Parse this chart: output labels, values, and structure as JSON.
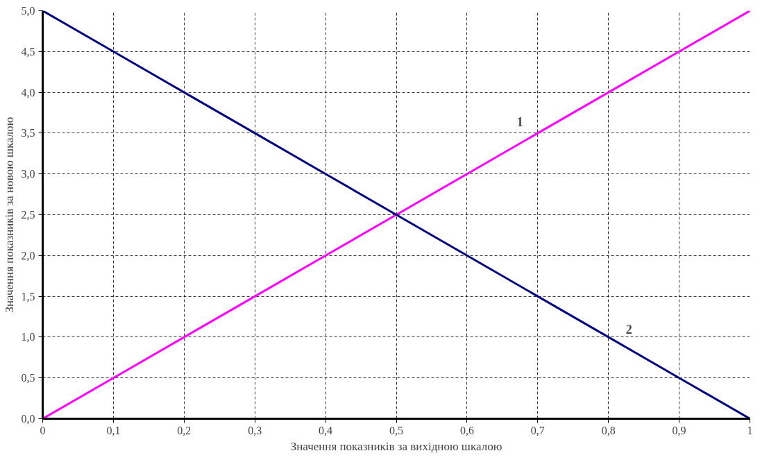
{
  "chart_data": {
    "type": "line",
    "xlabel": "Значення показників за вихідною шкалою",
    "ylabel": "Значення показників за новою шкалою",
    "x": [
      0,
      0.1,
      0.2,
      0.3,
      0.4,
      0.5,
      0.6,
      0.7,
      0.8,
      0.9,
      1
    ],
    "series": [
      {
        "name": "1",
        "color": "#ff00ff",
        "values": [
          0,
          0.5,
          1,
          1.5,
          2,
          2.5,
          3,
          3.5,
          4,
          4.5,
          5
        ]
      },
      {
        "name": "2",
        "color": "#000080",
        "values": [
          5,
          4.5,
          4,
          3.5,
          3,
          2.5,
          2,
          1.5,
          1,
          0.5,
          0
        ]
      }
    ],
    "xlim": [
      0,
      1
    ],
    "ylim": [
      0,
      5
    ],
    "xticks": [
      0,
      {
        "value": 0.1,
        "label": "0,1"
      },
      {
        "value": 0.2,
        "label": "0,2"
      },
      {
        "value": 0.3,
        "label": "0,3"
      },
      {
        "value": 0.4,
        "label": "0,4"
      },
      {
        "value": 0.5,
        "label": "0,5"
      },
      {
        "value": 0.6,
        "label": "0,6"
      },
      {
        "value": 0.7,
        "label": "0,7"
      },
      {
        "value": 0.8,
        "label": "0,8"
      },
      {
        "value": 0.9,
        "label": "0,9"
      },
      1
    ],
    "yticks": [
      {
        "value": 0,
        "label": "0,0"
      },
      {
        "value": 0.5,
        "label": "0,5"
      },
      {
        "value": 1,
        "label": "1,0"
      },
      {
        "value": 1.5,
        "label": "1,5"
      },
      {
        "value": 2,
        "label": "2,0"
      },
      {
        "value": 2.5,
        "label": "2,5"
      },
      {
        "value": 3,
        "label": "3,0"
      },
      {
        "value": 3.5,
        "label": "3,5"
      },
      {
        "value": 4,
        "label": "4,0"
      },
      {
        "value": 4.5,
        "label": "4,5"
      },
      {
        "value": 5,
        "label": "5,0"
      }
    ],
    "grid": true,
    "marker": "none"
  }
}
